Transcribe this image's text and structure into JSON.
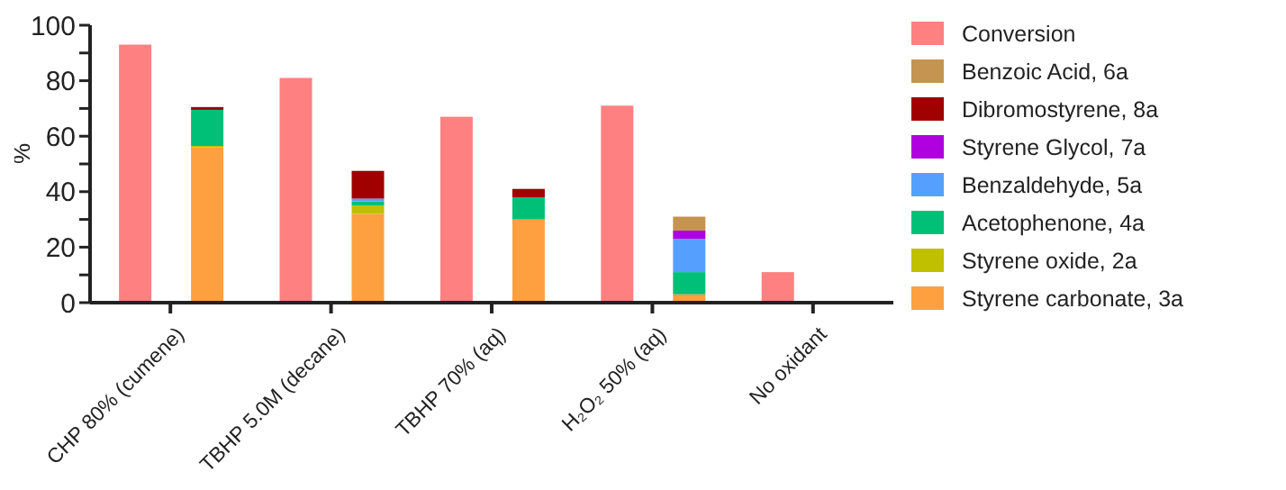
{
  "chart_data": {
    "type": "bar",
    "ylabel": "%",
    "categories": [
      "CHP 80% (cumene)",
      "TBHP 5.0M (decane)",
      "TBHP 70% (aq)",
      "H₂O₂ 50% (aq)",
      "No oxidant"
    ],
    "ylim": [
      0,
      100
    ],
    "yticks": [
      0,
      {
        "value": 10,
        "label": null
      },
      20,
      {
        "value": 30,
        "label": null
      },
      40,
      {
        "value": 50,
        "label": null
      },
      60,
      {
        "value": 70,
        "label": null
      },
      80,
      {
        "value": 90,
        "label": null
      },
      100
    ],
    "legend": "right",
    "series": [
      {
        "name": "Conversion",
        "color": "#ff8080",
        "values": [
          93,
          81,
          67,
          71,
          11
        ]
      },
      {
        "name": "Styrene carbonate, 3a",
        "color": "#ffa040",
        "values": [
          56,
          32,
          30,
          3,
          null
        ],
        "base": [
          0,
          0,
          0,
          0,
          null
        ]
      },
      {
        "name": "Styrene oxide, 2a",
        "color": "#c0c000",
        "values": [
          0.5,
          3,
          null,
          null,
          null
        ],
        "base": [
          56,
          32,
          null,
          null,
          null
        ]
      },
      {
        "name": "Acetophenone, 4a",
        "color": "#00c078",
        "values": [
          13,
          1.5,
          8,
          8,
          null
        ],
        "base": [
          56.5,
          35,
          30,
          3,
          null
        ]
      },
      {
        "name": "Benzaldehyde, 5a",
        "color": "#55a0ff",
        "values": [
          null,
          1,
          null,
          12,
          null
        ],
        "base": [
          null,
          36.5,
          null,
          11,
          null
        ]
      },
      {
        "name": "Styrene Glycol, 7a",
        "color": "#b000e0",
        "values": [
          null,
          null,
          null,
          3,
          null
        ],
        "base": [
          null,
          null,
          null,
          23,
          null
        ]
      },
      {
        "name": "Dibromostyrene, 8a",
        "color": "#a00000",
        "values": [
          1,
          10,
          3,
          null,
          null
        ],
        "base": [
          69.5,
          37.5,
          38,
          null,
          null
        ]
      },
      {
        "name": "Benzoic Acid, 6a",
        "color": "#c49450",
        "values": [
          null,
          null,
          null,
          5,
          null
        ],
        "base": [
          null,
          null,
          null,
          26,
          null
        ]
      }
    ]
  }
}
